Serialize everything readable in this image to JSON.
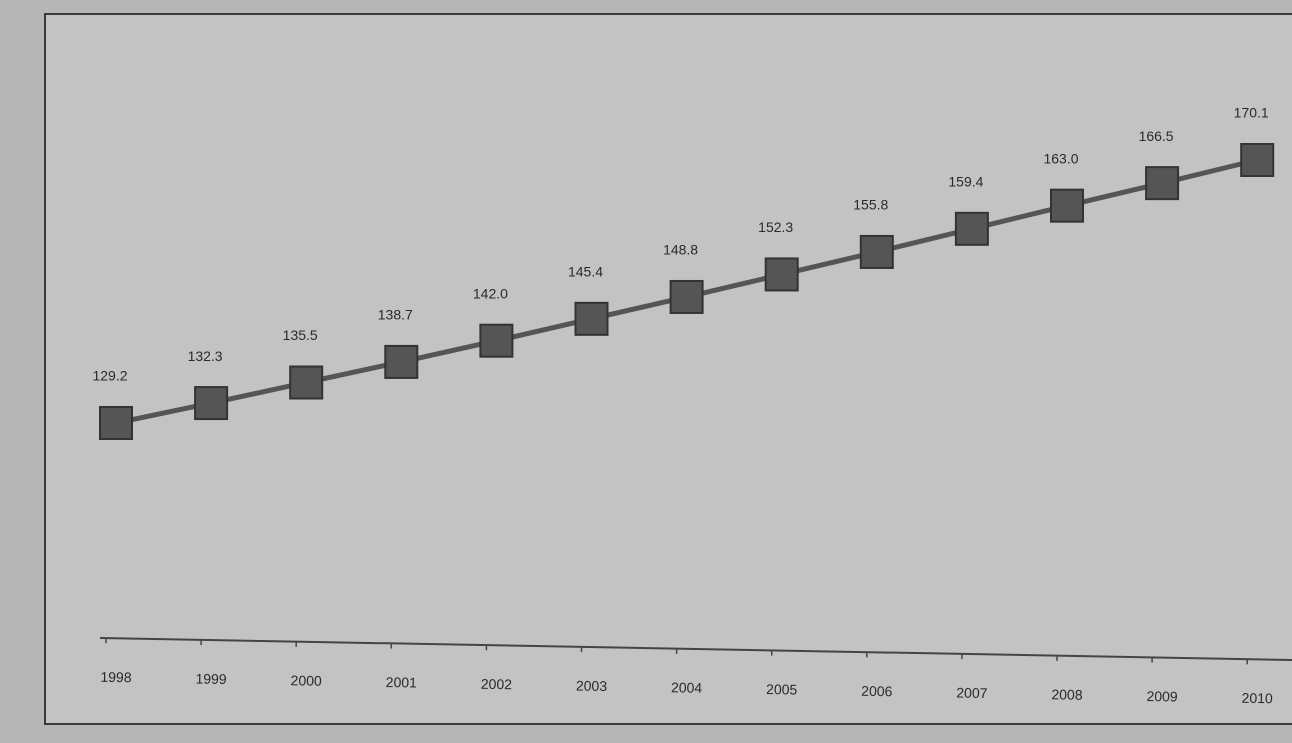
{
  "chart_data": {
    "type": "line",
    "categories": [
      "1998",
      "1999",
      "2000",
      "2001",
      "2002",
      "2003",
      "2004",
      "2005",
      "2006",
      "2007",
      "2008",
      "2009",
      "2010"
    ],
    "series": [
      {
        "color": "#555555",
        "values": [
          129.2,
          132.3,
          135.5,
          138.7,
          142.0,
          145.4,
          148.8,
          152.3,
          155.8,
          159.4,
          163.0,
          166.5,
          170.1
        ],
        "value_labels": [
          "129.2",
          "132.3",
          "135.5",
          "138.7",
          "142.0",
          "145.4",
          "148.8",
          "152.3",
          "155.8",
          "159.4",
          "163.0",
          "166.5",
          "170.1"
        ]
      }
    ],
    "markers": "square"
  }
}
